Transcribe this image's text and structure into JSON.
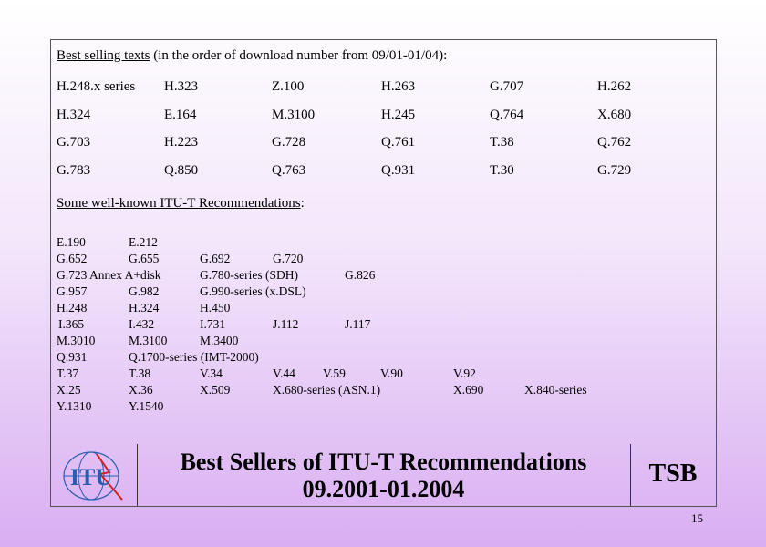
{
  "best_selling": {
    "heading": "Best selling texts",
    "note": "(in the order of download number from 09/01-01/04):",
    "rows": [
      [
        "H.248.x series",
        "H.323",
        "Z.100",
        "H.263",
        "G.707",
        "H.262"
      ],
      [
        "H.324",
        "E.164",
        "M.3100",
        "H.245",
        "Q.764",
        "X.680"
      ],
      [
        "G.703",
        "H.223",
        "G.728",
        "Q.761",
        "T.38",
        "Q.762"
      ],
      [
        "G.783",
        "Q.850",
        "Q.763",
        "Q.931",
        "T.30",
        "G.729"
      ]
    ]
  },
  "well_known": {
    "heading": "Some well-known ITU-T Recommendations",
    "colon": ":",
    "rows": [
      [
        "E.190",
        "E.212"
      ],
      [
        "G.652",
        "G.655",
        "G.692",
        "G.720"
      ],
      [
        "G.723 Annex A+disk",
        "G.780-series (SDH)",
        "G.826"
      ],
      [
        "G.957",
        "G.982",
        "G.990-series (x.DSL)"
      ],
      [
        "H.248",
        "H.324",
        "H.450"
      ],
      [
        "I.365",
        "I.432",
        "I.731",
        "J.112",
        "J.117"
      ],
      [
        "M.3010",
        "M.3100",
        "M.3400"
      ],
      [
        "Q.931",
        "Q.1700-series (IMT-2000)"
      ],
      [
        "T.37",
        "T.38",
        "V.34",
        "V.44",
        "V.59",
        "V.90",
        "V.92"
      ],
      [
        "X.25",
        "X.36",
        "X.509",
        "X.680-series (ASN.1)",
        "X.690",
        "X.840-series"
      ],
      [
        "Y.1310",
        "Y.1540"
      ]
    ]
  },
  "footer": {
    "logo": "ITU",
    "title_line1": "Best Sellers of ITU-T Recommendations",
    "title_line2": "09.2001-01.2004",
    "tsb": "TSB"
  },
  "page_number": "15"
}
